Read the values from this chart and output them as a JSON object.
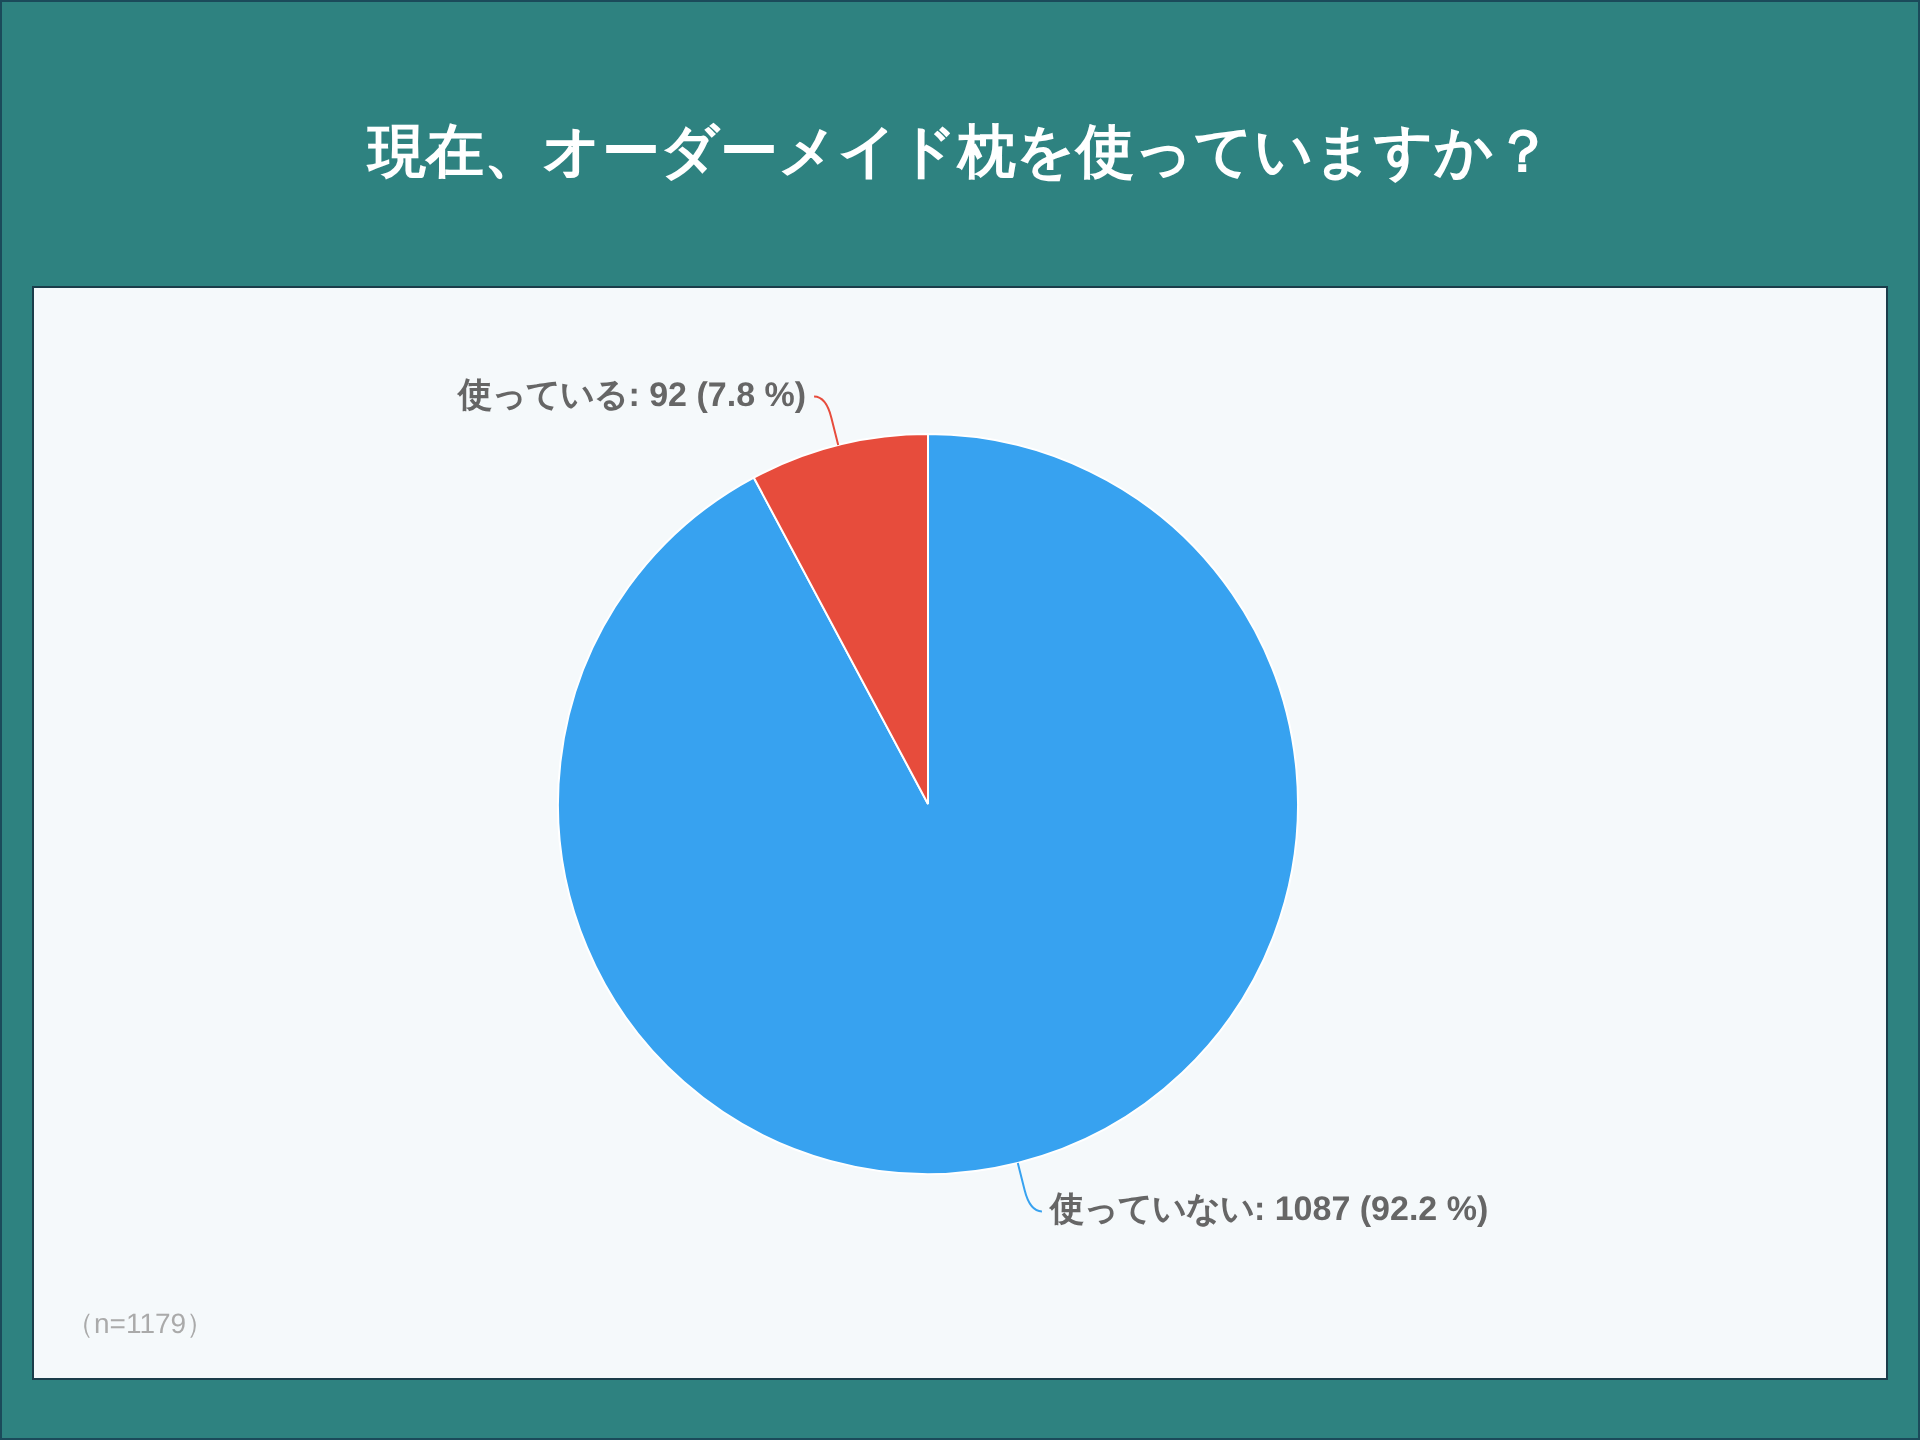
{
  "chart_data": {
    "type": "pie",
    "title": "現在、オーダーメイド枕を使っていますか？",
    "categories": [
      "使っていない",
      "使っている"
    ],
    "values": [
      1087,
      92
    ],
    "colors": [
      "#37a2f0",
      "#e74c3c"
    ],
    "value_labels": [
      "1087 (92.2 %)",
      "92 (7.8 %)"
    ],
    "annotations": [
      "（n=1179）"
    ]
  }
}
